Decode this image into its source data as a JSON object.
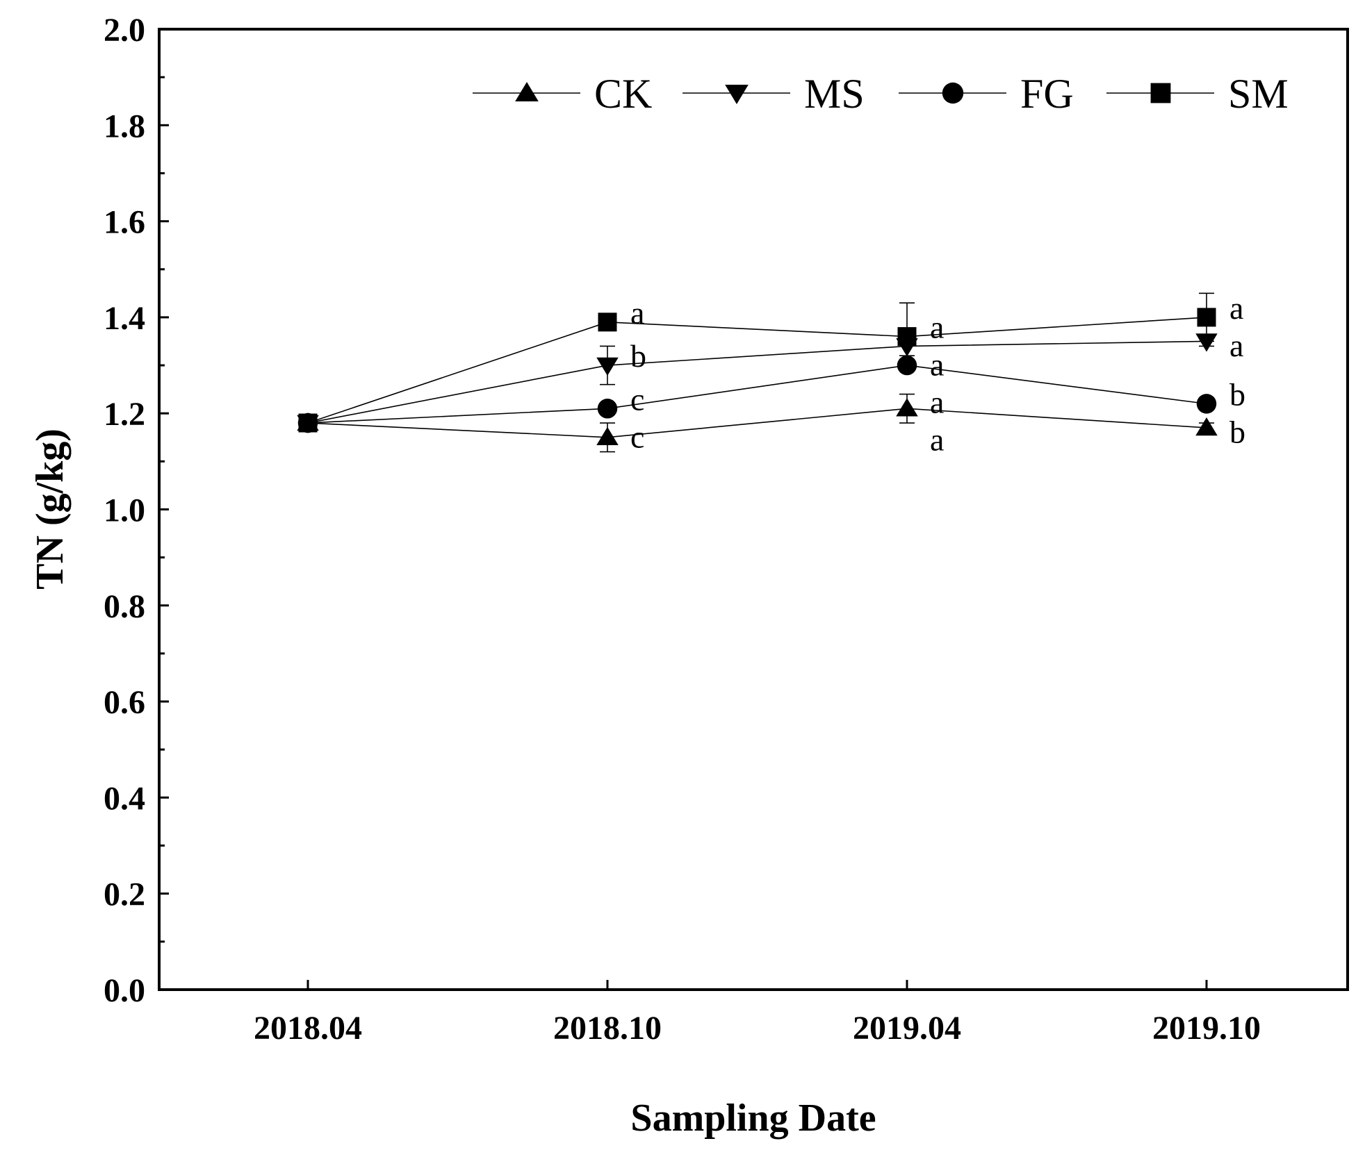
{
  "chart_data": {
    "type": "line",
    "xlabel": "Sampling Date",
    "ylabel": "TN (g/kg)",
    "categories": [
      "2018.04",
      "2018.10",
      "2019.04",
      "2019.10"
    ],
    "ylim": [
      0.0,
      2.0
    ],
    "yticks": [
      "0.0",
      "0.2",
      "0.4",
      "0.6",
      "0.8",
      "1.0",
      "1.2",
      "1.4",
      "1.6",
      "1.8",
      "2.0"
    ],
    "legend_position": "top-right",
    "series": [
      {
        "name": "CK",
        "marker": "triangle-up",
        "values": [
          1.18,
          1.15,
          1.21,
          1.17
        ],
        "errors": [
          0.01,
          0.03,
          0.03,
          0.01
        ],
        "letters": [
          "",
          "c",
          "a",
          "b"
        ]
      },
      {
        "name": "MS",
        "marker": "triangle-down",
        "values": [
          1.18,
          1.3,
          1.34,
          1.35
        ],
        "errors": [
          0.01,
          0.04,
          0.02,
          0.01
        ],
        "letters": [
          "",
          "b",
          "a",
          "a"
        ]
      },
      {
        "name": "FG",
        "marker": "circle",
        "values": [
          1.18,
          1.21,
          1.3,
          1.22
        ],
        "errors": [
          0.01,
          0.01,
          0.01,
          0.01
        ],
        "letters": [
          "",
          "c",
          "a",
          "b"
        ]
      },
      {
        "name": "SM",
        "marker": "square",
        "values": [
          1.18,
          1.39,
          1.36,
          1.4
        ],
        "errors": [
          0.01,
          0.01,
          0.07,
          0.05
        ],
        "letters": [
          "",
          "a",
          "a",
          "a"
        ]
      }
    ]
  }
}
